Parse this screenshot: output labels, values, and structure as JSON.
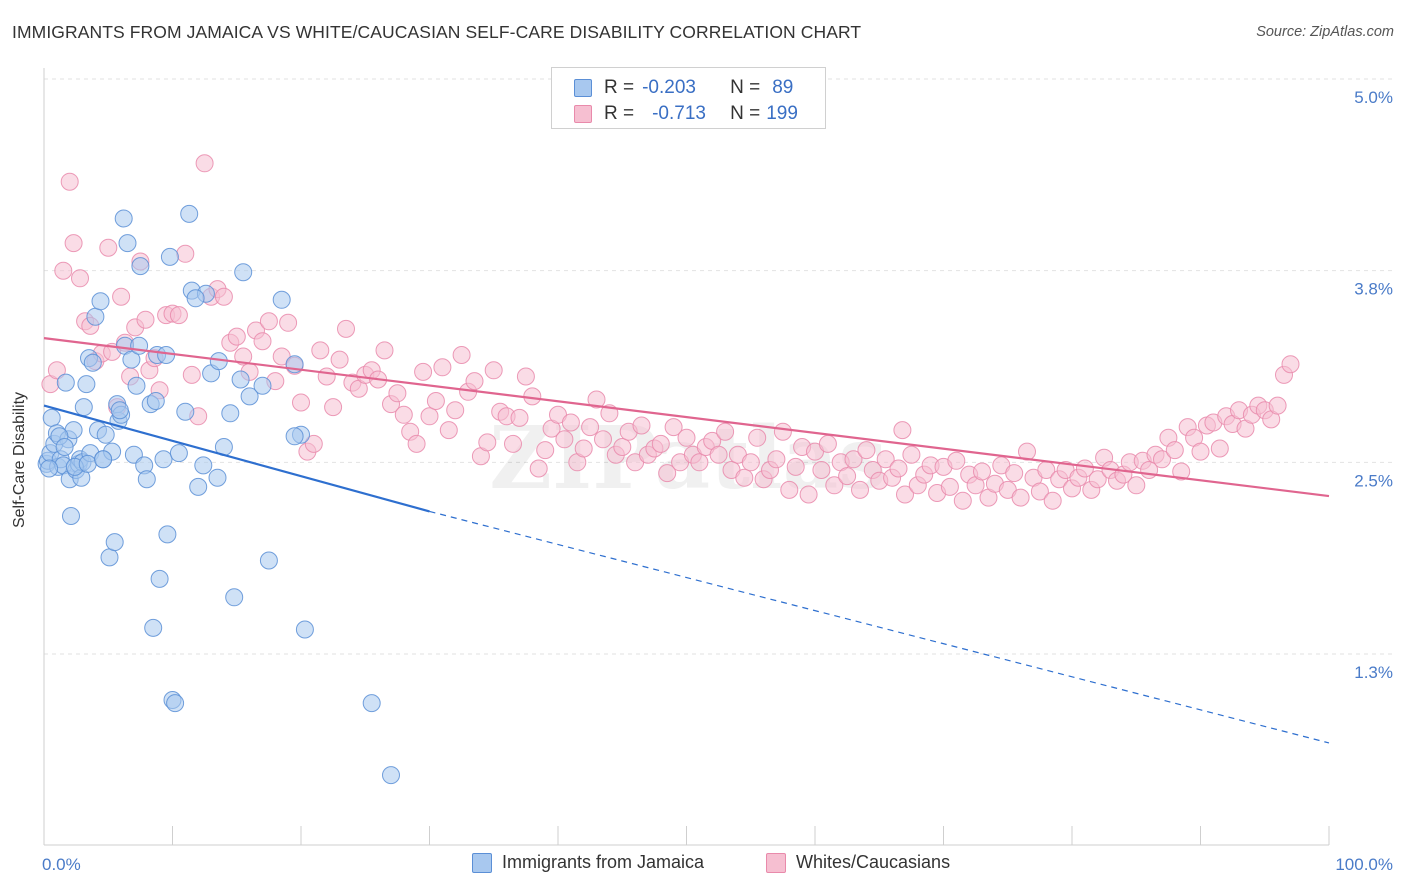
{
  "title": "IMMIGRANTS FROM JAMAICA VS WHITE/CAUCASIAN SELF-CARE DISABILITY CORRELATION CHART",
  "source": "Source: ZipAtlas.com",
  "watermark": "ZIPatlas",
  "colors": {
    "blue_fill": "#a8c8ef",
    "blue_stroke": "#5b8fd6",
    "blue_line": "#2e6fcf",
    "pink_fill": "#f6bfd1",
    "pink_stroke": "#e98aab",
    "pink_line": "#e0658f",
    "tick_text": "#4a7bc8",
    "grid": "#e2e2e2"
  },
  "legend_top": {
    "rows": [
      {
        "r_label": "R =",
        "r_value": "-0.203",
        "n_label": "N =",
        "n_value": "89",
        "series": "blue"
      },
      {
        "r_label": "R =",
        "r_value": "-0.713",
        "n_label": "N =",
        "n_value": "199",
        "series": "pink"
      }
    ]
  },
  "legend_bottom": [
    {
      "label": "Immigrants from Jamaica",
      "series": "blue"
    },
    {
      "label": "Whites/Caucasians",
      "series": "pink"
    }
  ],
  "chart_data": {
    "type": "scatter",
    "xlabel": "",
    "ylabel": "Self-Care Disability",
    "x_tick_labels": [
      "0.0%",
      "100.0%"
    ],
    "y_tick_labels": [
      "5.0%",
      "3.8%",
      "2.5%",
      "1.3%"
    ],
    "y_ticks": [
      5.0,
      3.75,
      2.5,
      1.25
    ],
    "xlim": [
      0,
      100
    ],
    "ylim": [
      0,
      5.0
    ],
    "grid": true,
    "series": [
      {
        "name": "Immigrants from Jamaica",
        "color": "blue",
        "trend": {
          "x0": 0,
          "y0": 2.87,
          "x1": 30,
          "y1": 2.18,
          "dashed_to_x": 100,
          "dashed_to_y": 0.67
        },
        "points": [
          [
            0.2,
            2.49
          ],
          [
            0.3,
            2.51
          ],
          [
            0.5,
            2.56
          ],
          [
            0.6,
            2.79
          ],
          [
            0.8,
            2.62
          ],
          [
            1.0,
            2.69
          ],
          [
            1.1,
            2.47
          ],
          [
            1.3,
            2.52
          ],
          [
            1.5,
            2.48
          ],
          [
            1.7,
            3.02
          ],
          [
            1.9,
            2.65
          ],
          [
            2.0,
            2.39
          ],
          [
            2.1,
            2.15
          ],
          [
            2.3,
            2.71
          ],
          [
            2.5,
            2.45
          ],
          [
            2.7,
            2.49
          ],
          [
            2.8,
            2.52
          ],
          [
            2.9,
            2.4
          ],
          [
            3.0,
            2.5
          ],
          [
            3.1,
            2.86
          ],
          [
            3.3,
            3.01
          ],
          [
            3.5,
            3.18
          ],
          [
            3.6,
            2.56
          ],
          [
            3.8,
            3.15
          ],
          [
            4.0,
            3.45
          ],
          [
            4.2,
            2.71
          ],
          [
            4.4,
            3.55
          ],
          [
            4.6,
            2.52
          ],
          [
            4.8,
            2.68
          ],
          [
            5.1,
            1.88
          ],
          [
            5.3,
            2.57
          ],
          [
            5.5,
            1.98
          ],
          [
            5.7,
            2.88
          ],
          [
            5.8,
            2.77
          ],
          [
            6.0,
            2.81
          ],
          [
            6.3,
            3.26
          ],
          [
            6.5,
            3.93
          ],
          [
            6.8,
            3.17
          ],
          [
            7.0,
            2.55
          ],
          [
            7.2,
            3.0
          ],
          [
            7.5,
            3.78
          ],
          [
            7.8,
            2.48
          ],
          [
            8.0,
            2.39
          ],
          [
            8.3,
            2.88
          ],
          [
            8.5,
            1.42
          ],
          [
            8.8,
            3.2
          ],
          [
            9.0,
            1.74
          ],
          [
            9.3,
            2.52
          ],
          [
            9.6,
            2.03
          ],
          [
            9.8,
            3.84
          ],
          [
            10.0,
            0.95
          ],
          [
            10.2,
            0.93
          ],
          [
            10.5,
            2.56
          ],
          [
            11.0,
            2.83
          ],
          [
            11.3,
            4.12
          ],
          [
            11.5,
            3.62
          ],
          [
            12.0,
            2.34
          ],
          [
            12.4,
            2.48
          ],
          [
            12.6,
            3.6
          ],
          [
            13.0,
            3.08
          ],
          [
            13.5,
            2.4
          ],
          [
            14.0,
            2.6
          ],
          [
            14.5,
            2.82
          ],
          [
            14.8,
            1.62
          ],
          [
            15.5,
            3.74
          ],
          [
            16.0,
            2.93
          ],
          [
            17.0,
            3.0
          ],
          [
            17.5,
            1.86
          ],
          [
            18.5,
            3.56
          ],
          [
            19.5,
            3.14
          ],
          [
            20.0,
            2.68
          ],
          [
            20.3,
            1.41
          ],
          [
            25.5,
            0.93
          ],
          [
            27.0,
            0.46
          ],
          [
            6.2,
            4.09
          ],
          [
            9.5,
            3.2
          ],
          [
            1.2,
            2.67
          ],
          [
            2.4,
            2.47
          ],
          [
            3.4,
            2.49
          ],
          [
            4.6,
            2.52
          ],
          [
            7.4,
            3.26
          ],
          [
            13.6,
            3.16
          ],
          [
            19.5,
            2.67
          ],
          [
            0.4,
            2.46
          ],
          [
            1.6,
            2.6
          ],
          [
            5.9,
            2.84
          ],
          [
            8.7,
            2.9
          ],
          [
            11.8,
            3.57
          ],
          [
            15.3,
            3.04
          ]
        ]
      },
      {
        "name": "Whites/Caucasians",
        "color": "pink",
        "trend": {
          "x0": 0,
          "y0": 3.31,
          "x1": 100,
          "y1": 2.28
        },
        "points": [
          [
            0.5,
            3.01
          ],
          [
            1.0,
            3.1
          ],
          [
            1.5,
            3.75
          ],
          [
            2.0,
            4.33
          ],
          [
            2.3,
            3.93
          ],
          [
            2.8,
            3.7
          ],
          [
            3.2,
            3.42
          ],
          [
            3.6,
            3.39
          ],
          [
            4.0,
            3.16
          ],
          [
            4.5,
            3.21
          ],
          [
            5.0,
            3.9
          ],
          [
            5.3,
            3.22
          ],
          [
            5.7,
            2.86
          ],
          [
            6.0,
            3.58
          ],
          [
            6.3,
            3.28
          ],
          [
            6.7,
            3.06
          ],
          [
            7.1,
            3.38
          ],
          [
            7.5,
            3.81
          ],
          [
            7.9,
            3.43
          ],
          [
            8.2,
            3.1
          ],
          [
            8.6,
            3.18
          ],
          [
            9.0,
            2.97
          ],
          [
            9.5,
            3.46
          ],
          [
            10.0,
            3.47
          ],
          [
            10.5,
            3.46
          ],
          [
            11.0,
            3.86
          ],
          [
            11.5,
            3.07
          ],
          [
            12.0,
            2.8
          ],
          [
            12.5,
            4.45
          ],
          [
            13.0,
            3.58
          ],
          [
            13.5,
            3.63
          ],
          [
            14.0,
            3.58
          ],
          [
            14.5,
            3.28
          ],
          [
            15.0,
            3.32
          ],
          [
            15.5,
            3.19
          ],
          [
            16.0,
            3.09
          ],
          [
            16.5,
            3.36
          ],
          [
            17.0,
            3.29
          ],
          [
            17.5,
            3.42
          ],
          [
            18.0,
            3.03
          ],
          [
            18.5,
            3.19
          ],
          [
            19.0,
            3.41
          ],
          [
            19.5,
            3.13
          ],
          [
            20.0,
            2.89
          ],
          [
            20.5,
            2.57
          ],
          [
            21.0,
            2.62
          ],
          [
            21.5,
            3.23
          ],
          [
            22.0,
            3.06
          ],
          [
            22.5,
            2.86
          ],
          [
            23.0,
            3.17
          ],
          [
            23.5,
            3.37
          ],
          [
            24.0,
            3.02
          ],
          [
            24.5,
            2.98
          ],
          [
            25.0,
            3.07
          ],
          [
            25.5,
            3.1
          ],
          [
            26.0,
            3.04
          ],
          [
            26.5,
            3.23
          ],
          [
            27.0,
            2.88
          ],
          [
            27.5,
            2.95
          ],
          [
            28.0,
            2.81
          ],
          [
            28.5,
            2.7
          ],
          [
            29.0,
            2.62
          ],
          [
            29.5,
            3.09
          ],
          [
            30.0,
            2.8
          ],
          [
            30.5,
            2.9
          ],
          [
            31.0,
            3.12
          ],
          [
            31.5,
            2.71
          ],
          [
            32.0,
            2.84
          ],
          [
            32.5,
            3.2
          ],
          [
            33.0,
            2.96
          ],
          [
            33.5,
            3.03
          ],
          [
            34.0,
            2.54
          ],
          [
            34.5,
            2.63
          ],
          [
            35.0,
            3.1
          ],
          [
            35.5,
            2.83
          ],
          [
            36.0,
            2.8
          ],
          [
            36.5,
            2.62
          ],
          [
            37.0,
            2.79
          ],
          [
            37.5,
            3.06
          ],
          [
            38.0,
            2.93
          ],
          [
            38.5,
            2.46
          ],
          [
            39.0,
            2.58
          ],
          [
            39.5,
            2.72
          ],
          [
            40.0,
            2.81
          ],
          [
            40.5,
            2.65
          ],
          [
            41.0,
            2.76
          ],
          [
            41.5,
            2.5
          ],
          [
            42.0,
            2.59
          ],
          [
            42.5,
            2.73
          ],
          [
            43.0,
            2.91
          ],
          [
            43.5,
            2.65
          ],
          [
            44.0,
            2.82
          ],
          [
            44.5,
            2.55
          ],
          [
            45.0,
            2.6
          ],
          [
            45.5,
            2.7
          ],
          [
            46.0,
            2.5
          ],
          [
            46.5,
            2.74
          ],
          [
            47.0,
            2.55
          ],
          [
            47.5,
            2.59
          ],
          [
            48.0,
            2.62
          ],
          [
            48.5,
            2.43
          ],
          [
            49.0,
            2.73
          ],
          [
            49.5,
            2.5
          ],
          [
            50.0,
            2.66
          ],
          [
            50.5,
            2.55
          ],
          [
            51.0,
            2.5
          ],
          [
            51.5,
            2.6
          ],
          [
            52.0,
            2.64
          ],
          [
            52.5,
            2.55
          ],
          [
            53.0,
            2.7
          ],
          [
            53.5,
            2.45
          ],
          [
            54.0,
            2.55
          ],
          [
            54.5,
            2.4
          ],
          [
            55.0,
            2.5
          ],
          [
            55.5,
            2.66
          ],
          [
            56.0,
            2.39
          ],
          [
            56.5,
            2.45
          ],
          [
            57.0,
            2.52
          ],
          [
            57.5,
            2.7
          ],
          [
            58.0,
            2.32
          ],
          [
            58.5,
            2.47
          ],
          [
            59.0,
            2.6
          ],
          [
            59.5,
            2.29
          ],
          [
            60.0,
            2.57
          ],
          [
            60.5,
            2.45
          ],
          [
            61.0,
            2.62
          ],
          [
            61.5,
            2.35
          ],
          [
            62.0,
            2.5
          ],
          [
            62.5,
            2.41
          ],
          [
            63.0,
            2.52
          ],
          [
            63.5,
            2.32
          ],
          [
            64.0,
            2.58
          ],
          [
            64.5,
            2.45
          ],
          [
            65.0,
            2.38
          ],
          [
            65.5,
            2.52
          ],
          [
            66.0,
            2.4
          ],
          [
            66.5,
            2.46
          ],
          [
            67.0,
            2.29
          ],
          [
            67.5,
            2.55
          ],
          [
            68.0,
            2.35
          ],
          [
            68.5,
            2.42
          ],
          [
            69.0,
            2.48
          ],
          [
            69.5,
            2.3
          ],
          [
            70.0,
            2.47
          ],
          [
            70.5,
            2.34
          ],
          [
            71.0,
            2.51
          ],
          [
            71.5,
            2.25
          ],
          [
            72.0,
            2.42
          ],
          [
            72.5,
            2.35
          ],
          [
            73.0,
            2.44
          ],
          [
            73.5,
            2.27
          ],
          [
            74.0,
            2.36
          ],
          [
            74.5,
            2.48
          ],
          [
            75.0,
            2.32
          ],
          [
            75.5,
            2.43
          ],
          [
            76.0,
            2.27
          ],
          [
            76.5,
            2.57
          ],
          [
            77.0,
            2.4
          ],
          [
            77.5,
            2.31
          ],
          [
            78.0,
            2.45
          ],
          [
            78.5,
            2.25
          ],
          [
            79.0,
            2.39
          ],
          [
            79.5,
            2.45
          ],
          [
            80.0,
            2.33
          ],
          [
            80.5,
            2.4
          ],
          [
            81.0,
            2.46
          ],
          [
            81.5,
            2.32
          ],
          [
            82.0,
            2.39
          ],
          [
            82.5,
            2.53
          ],
          [
            83.0,
            2.45
          ],
          [
            83.5,
            2.38
          ],
          [
            84.0,
            2.42
          ],
          [
            84.5,
            2.5
          ],
          [
            85.0,
            2.35
          ],
          [
            85.5,
            2.51
          ],
          [
            86.0,
            2.45
          ],
          [
            86.5,
            2.55
          ],
          [
            87.0,
            2.52
          ],
          [
            87.5,
            2.66
          ],
          [
            88.0,
            2.58
          ],
          [
            88.5,
            2.44
          ],
          [
            89.0,
            2.73
          ],
          [
            89.5,
            2.66
          ],
          [
            90.0,
            2.57
          ],
          [
            90.5,
            2.74
          ],
          [
            91.0,
            2.76
          ],
          [
            91.5,
            2.59
          ],
          [
            92.0,
            2.8
          ],
          [
            92.5,
            2.75
          ],
          [
            93.0,
            2.84
          ],
          [
            93.5,
            2.72
          ],
          [
            94.0,
            2.81
          ],
          [
            94.5,
            2.87
          ],
          [
            95.0,
            2.84
          ],
          [
            95.5,
            2.78
          ],
          [
            96.0,
            2.87
          ],
          [
            96.5,
            3.07
          ],
          [
            97.0,
            3.14
          ],
          [
            66.8,
            2.71
          ]
        ]
      }
    ]
  }
}
